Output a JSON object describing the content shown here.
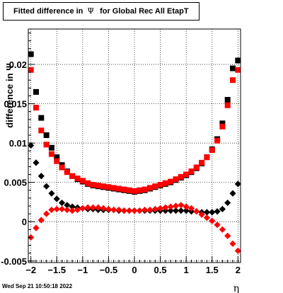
{
  "header": {
    "title_prefix": "Fitted difference in",
    "title_symbol": "Ψ",
    "title_suffix": "for Global Rec All EtapT"
  },
  "footer": {
    "date": "Wed Sep 21 10:50:18 2022"
  },
  "chart_data": {
    "type": "scatter",
    "xlabel": "η",
    "ylabel": "difference in  Ψ",
    "xlim": [
      -2.05,
      2.05
    ],
    "ylim": [
      -0.0052,
      0.0245
    ],
    "xticks": [
      "−2",
      "−1.5",
      "−1",
      "−0.5",
      "0",
      "0.5",
      "1",
      "1.5",
      "2"
    ],
    "yticks": [
      "-0.005",
      "0",
      "0.005",
      "0.01",
      "0.015",
      "0.02"
    ],
    "grid": true,
    "series": [
      {
        "color": "#000000",
        "marker": "square",
        "x": [
          -2.0,
          -1.9,
          -1.8,
          -1.7,
          -1.6,
          -1.5,
          -1.4,
          -1.3,
          -1.2,
          -1.1,
          -1.0,
          -0.9,
          -0.8,
          -0.7,
          -0.6,
          -0.5,
          -0.4,
          -0.3,
          -0.2,
          -0.1,
          0.0,
          0.1,
          0.2,
          0.3,
          0.4,
          0.5,
          0.6,
          0.7,
          0.8,
          0.9,
          1.0,
          1.1,
          1.2,
          1.3,
          1.4,
          1.5,
          1.6,
          1.7,
          1.8,
          1.9,
          2.0
        ],
        "values": [
          0.0213,
          0.0165,
          0.0132,
          0.011,
          0.0094,
          0.0082,
          0.0072,
          0.0064,
          0.0058,
          0.0054,
          0.0051,
          0.0048,
          0.0046,
          0.0045,
          0.0044,
          0.0043,
          0.0042,
          0.0041,
          0.004,
          0.0039,
          0.0038,
          0.0039,
          0.004,
          0.0042,
          0.0044,
          0.0046,
          0.0048,
          0.005,
          0.0053,
          0.0056,
          0.0059,
          0.0063,
          0.0068,
          0.0074,
          0.0082,
          0.0092,
          0.0105,
          0.0125,
          0.0155,
          0.0195,
          0.0205
        ]
      },
      {
        "color": "#ff0000",
        "marker": "square",
        "x": [
          -2.0,
          -1.9,
          -1.8,
          -1.7,
          -1.6,
          -1.5,
          -1.4,
          -1.3,
          -1.2,
          -1.1,
          -1.0,
          -0.9,
          -0.8,
          -0.7,
          -0.6,
          -0.5,
          -0.4,
          -0.3,
          -0.2,
          -0.1,
          0.0,
          0.1,
          0.2,
          0.3,
          0.4,
          0.5,
          0.6,
          0.7,
          0.8,
          0.9,
          1.0,
          1.1,
          1.2,
          1.3,
          1.4,
          1.5,
          1.6,
          1.7,
          1.8,
          1.9,
          2.0
        ],
        "values": [
          0.0193,
          0.0145,
          0.0116,
          0.0098,
          0.0086,
          0.0077,
          0.0069,
          0.0063,
          0.0058,
          0.0055,
          0.0052,
          0.0049,
          0.0047,
          0.0046,
          0.0045,
          0.0044,
          0.0043,
          0.0042,
          0.0041,
          0.004,
          0.0039,
          0.004,
          0.0041,
          0.0043,
          0.0045,
          0.0047,
          0.0049,
          0.0051,
          0.0054,
          0.0057,
          0.006,
          0.0064,
          0.0069,
          0.0075,
          0.0082,
          0.0091,
          0.0103,
          0.0121,
          0.0148,
          0.018,
          0.0193
        ]
      },
      {
        "color": "#000000",
        "marker": "diamond",
        "x": [
          -2.0,
          -1.9,
          -1.8,
          -1.7,
          -1.6,
          -1.5,
          -1.4,
          -1.3,
          -1.2,
          -1.1,
          -1.0,
          -0.9,
          -0.8,
          -0.7,
          -0.6,
          -0.5,
          -0.4,
          -0.3,
          -0.2,
          -0.1,
          0.0,
          0.1,
          0.2,
          0.3,
          0.4,
          0.5,
          0.6,
          0.7,
          0.8,
          0.9,
          1.0,
          1.1,
          1.2,
          1.3,
          1.4,
          1.5,
          1.6,
          1.7,
          1.8,
          1.9,
          2.0
        ],
        "values": [
          0.0097,
          0.0075,
          0.0058,
          0.0045,
          0.0036,
          0.0029,
          0.0024,
          0.0021,
          0.0019,
          0.0018,
          0.0017,
          0.0016,
          0.0016,
          0.0015,
          0.0015,
          0.0015,
          0.0015,
          0.0014,
          0.0014,
          0.0014,
          0.0014,
          0.0014,
          0.0014,
          0.0014,
          0.0014,
          0.0014,
          0.0014,
          0.0014,
          0.0014,
          0.0014,
          0.0014,
          0.0013,
          0.0013,
          0.0012,
          0.0012,
          0.0012,
          0.0013,
          0.0016,
          0.0024,
          0.0036,
          0.0048
        ]
      },
      {
        "color": "#ff0000",
        "marker": "diamond",
        "x": [
          -2.0,
          -1.9,
          -1.8,
          -1.7,
          -1.6,
          -1.5,
          -1.4,
          -1.3,
          -1.2,
          -1.1,
          -1.0,
          -0.9,
          -0.8,
          -0.7,
          -0.6,
          -0.5,
          -0.4,
          -0.3,
          -0.2,
          -0.1,
          0.0,
          0.1,
          0.2,
          0.3,
          0.4,
          0.5,
          0.6,
          0.7,
          0.8,
          0.9,
          1.0,
          1.1,
          1.2,
          1.3,
          1.4,
          1.5,
          1.6,
          1.7,
          1.8,
          1.9,
          2.0
        ],
        "values": [
          -0.002,
          -0.0008,
          0.0002,
          0.001,
          0.0015,
          0.0016,
          0.0016,
          0.0015,
          0.0014,
          0.0015,
          0.0017,
          0.0018,
          0.0018,
          0.0018,
          0.0017,
          0.0016,
          0.0015,
          0.0015,
          0.0014,
          0.0014,
          0.0014,
          0.0014,
          0.0015,
          0.0015,
          0.0016,
          0.0017,
          0.0018,
          0.0019,
          0.002,
          0.0021,
          0.0019,
          0.0017,
          0.0013,
          0.0009,
          0.0005,
          0.0001,
          -0.0004,
          -0.001,
          -0.0018,
          -0.0028,
          -0.0037
        ]
      }
    ]
  }
}
